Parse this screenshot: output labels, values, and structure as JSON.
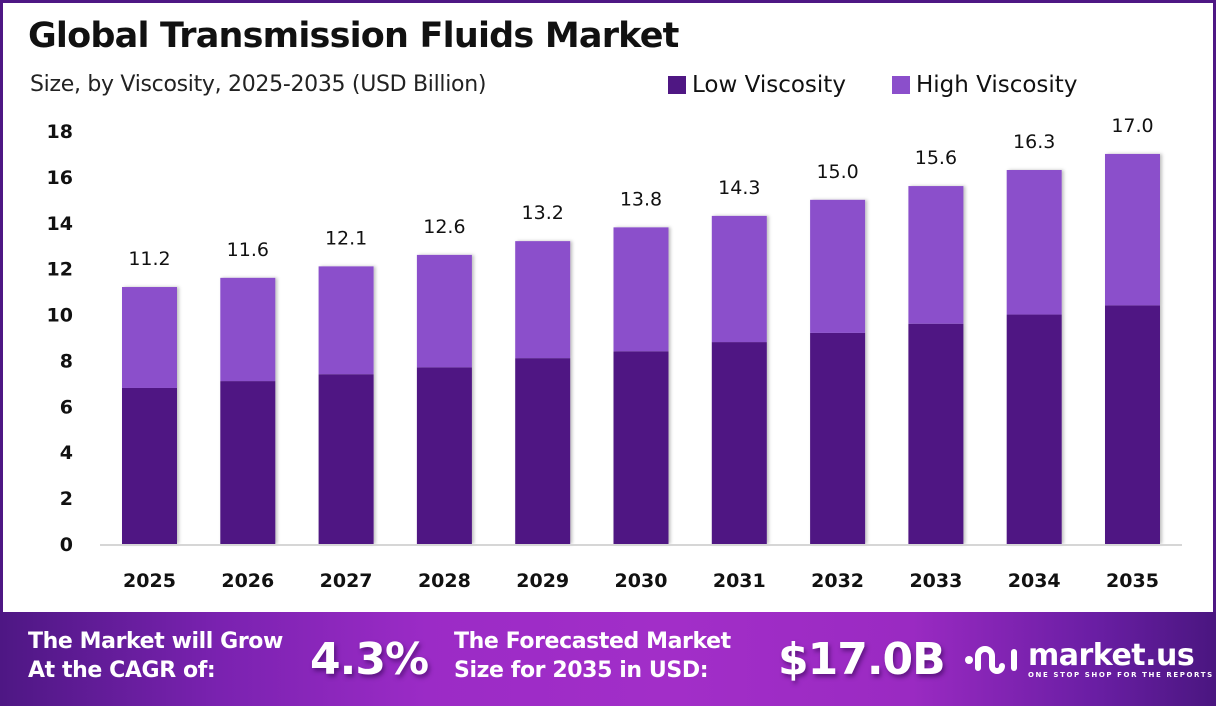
{
  "header": {
    "title": "Global Transmission Fluids Market",
    "subtitle": "Size, by Viscosity, 2025-2035 (USD Billion)"
  },
  "legend": [
    {
      "label": "Low Viscosity",
      "color": "#4f1783"
    },
    {
      "label": "High Viscosity",
      "color": "#8b4fcb"
    }
  ],
  "chart_data": {
    "type": "bar",
    "stacked": true,
    "title": "Global Transmission Fluids Market",
    "subtitle": "Size, by Viscosity, 2025-2035 (USD Billion)",
    "xlabel": "",
    "ylabel": "",
    "categories": [
      "2025",
      "2026",
      "2027",
      "2028",
      "2029",
      "2030",
      "2031",
      "2032",
      "2033",
      "2034",
      "2035"
    ],
    "series": [
      {
        "name": "Low Viscosity",
        "color": "#4f1783",
        "values": [
          6.8,
          7.1,
          7.4,
          7.7,
          8.1,
          8.4,
          8.8,
          9.2,
          9.6,
          10.0,
          10.4
        ]
      },
      {
        "name": "High Viscosity",
        "color": "#8b4fcb",
        "values": [
          4.4,
          4.5,
          4.7,
          4.9,
          5.1,
          5.4,
          5.5,
          5.8,
          6.0,
          6.3,
          6.6
        ]
      }
    ],
    "totals": [
      "11.2",
      "11.6",
      "12.1",
      "12.6",
      "13.2",
      "13.8",
      "14.3",
      "15.0",
      "15.6",
      "16.3",
      "17.0"
    ],
    "ylim": [
      0,
      18
    ],
    "yticks": [
      "0",
      "2",
      "4",
      "6",
      "8",
      "10",
      "12",
      "14",
      "16",
      "18"
    ],
    "grid": false,
    "legend_position": "top-right"
  },
  "banner": {
    "cagr_label_line1": "The Market will Grow",
    "cagr_label_line2": "At the CAGR of:",
    "cagr_value": "4.3%",
    "forecast_label_line1": "The Forecasted Market",
    "forecast_label_line2": "Size for 2035 in USD:",
    "forecast_value": "$17.0B",
    "logo_name": "market.us",
    "logo_tagline": "ONE STOP SHOP FOR THE REPORTS"
  }
}
